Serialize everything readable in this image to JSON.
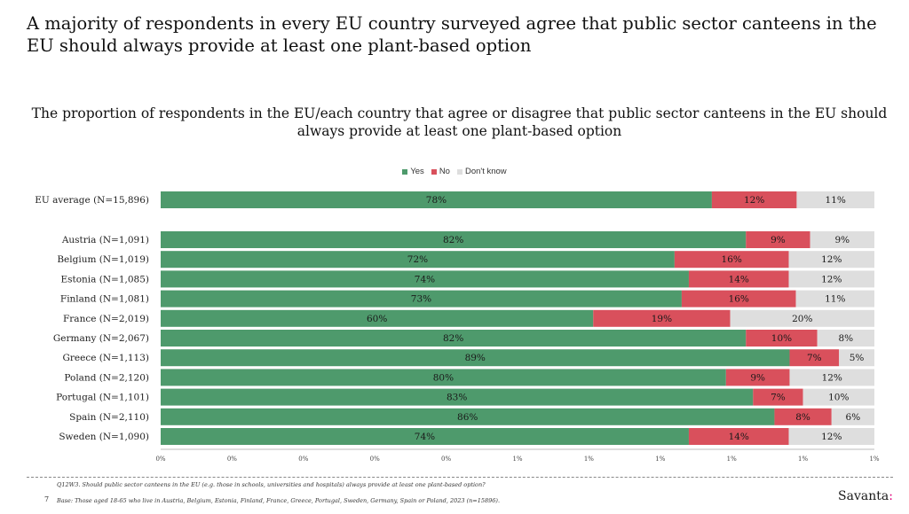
{
  "headline": "A majority of respondents in every EU country surveyed agree that public sector canteens in the EU should always provide at least one plant-based option",
  "chart_data": {
    "type": "bar",
    "orientation": "horizontal",
    "stacked": true,
    "title": "The proportion of respondents in the EU/each country that agree or disagree that public sector canteens in the EU should always provide at least one plant-based option",
    "legend": {
      "placement": "top-center",
      "entries": [
        "Yes",
        "No",
        "Don't know"
      ]
    },
    "categories": [
      "EU average  (N=15,896)",
      "Austria  (N=1,091)",
      "Belgium  (N=1,019)",
      "Estonia  (N=1,085)",
      "Finland  (N=1,081)",
      "France  (N=2,019)",
      "Germany  (N=2,067)",
      "Greece  (N=1,113)",
      "Poland  (N=2,120)",
      "Portugal  (N=1,101)",
      "Spain  (N=2,110)",
      "Sweden  (N=1,090)"
    ],
    "series": [
      {
        "name": "Yes",
        "color": "#4e9a6c",
        "values": [
          78,
          82,
          72,
          74,
          73,
          60,
          82,
          89,
          80,
          83,
          86,
          74
        ]
      },
      {
        "name": "No",
        "color": "#d9505c",
        "values": [
          12,
          9,
          16,
          14,
          16,
          19,
          10,
          7,
          9,
          7,
          8,
          14
        ]
      },
      {
        "name": "Don't know",
        "color": "#dedede",
        "values": [
          11,
          9,
          12,
          12,
          11,
          20,
          8,
          5,
          12,
          10,
          6,
          12
        ]
      }
    ],
    "x_tick_labels": [
      "0%",
      "0%",
      "0%",
      "0%",
      "0%",
      "1%",
      "1%",
      "1%",
      "1%",
      "1%",
      "1%"
    ],
    "xlim": [
      0,
      100
    ],
    "grid": false
  },
  "footnotes": {
    "question": "Q12W3. Should public sector canteens in the EU (e.g. those in schools, universities and hospitals) always provide at least one plant-based option?",
    "base": "Base: Those aged 18-65 who live in Austria, Belgium, Estonia, Finland, France, Greece, Portugal, Sweden, Germany, Spain or Poland, 2023 (n=15896)."
  },
  "page_number": "7",
  "brand": {
    "name": "Savanta",
    "mark": ":"
  }
}
